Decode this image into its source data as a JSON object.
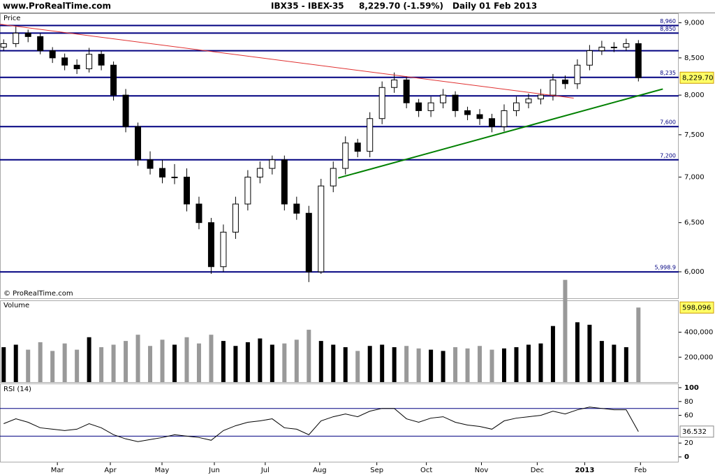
{
  "header": {
    "site": "www.ProRealTime.com",
    "instrument": "IBX35 - IBEX-35",
    "quote": "8,229.70 (-1.59%)",
    "period": "Daily  01 Feb 2013"
  },
  "chart_data": {
    "type": "candlestick",
    "title": "Price",
    "copyright": "© ProRealTime.com",
    "log_scale": true,
    "xlim": [
      -0.3,
      55.3
    ],
    "xticks": [
      {
        "value": 4.4,
        "label": "Mar"
      },
      {
        "value": 8.74,
        "label": "Apr"
      },
      {
        "value": 12.97,
        "label": "May"
      },
      {
        "value": 17.26,
        "label": "Jun"
      },
      {
        "value": 21.43,
        "label": "Jul"
      },
      {
        "value": 25.89,
        "label": "Aug"
      },
      {
        "value": 30.57,
        "label": "Sep"
      },
      {
        "value": 34.63,
        "label": "Oct"
      },
      {
        "value": 39.14,
        "label": "Nov"
      },
      {
        "value": 43.71,
        "label": "Dec"
      },
      {
        "value": 47.6,
        "label": "2013"
      },
      {
        "value": 52.17,
        "label": "Feb"
      }
    ],
    "x": [
      0,
      1,
      2,
      3,
      4,
      5,
      6,
      7,
      8,
      9,
      10,
      11,
      12,
      13,
      14,
      15,
      16,
      17,
      18,
      19,
      20,
      21,
      22,
      23,
      24,
      25,
      26,
      27,
      28,
      29,
      30,
      31,
      32,
      33,
      34,
      35,
      36,
      37,
      38,
      39,
      40,
      41,
      42,
      43,
      44,
      45,
      46,
      47,
      48,
      49,
      50,
      51,
      52
    ],
    "open": [
      8650,
      8700,
      8850,
      8800,
      8600,
      8500,
      8400,
      8350,
      8550,
      8400,
      8000,
      7600,
      7200,
      7100,
      7000,
      7000,
      6700,
      6500,
      6050,
      6400,
      6700,
      7000,
      7100,
      7200,
      6700,
      6600,
      6000,
      6900,
      7100,
      7400,
      7300,
      7700,
      8100,
      8200,
      7900,
      7800,
      7900,
      8000,
      7800,
      7750,
      7700,
      7600,
      7800,
      7900,
      7950,
      8000,
      8200,
      8150,
      8400,
      8600,
      8650,
      8650,
      8700
    ],
    "high": [
      8760,
      8960,
      8900,
      8850,
      8650,
      8560,
      8480,
      8640,
      8600,
      8450,
      8080,
      7650,
      7300,
      7200,
      7150,
      7100,
      6780,
      6550,
      6480,
      6780,
      7080,
      7180,
      7250,
      7250,
      6780,
      6680,
      6980,
      7180,
      7480,
      7450,
      7780,
      8180,
      8300,
      8250,
      7950,
      7980,
      8080,
      8050,
      7850,
      7820,
      7760,
      7880,
      7980,
      8020,
      8080,
      8280,
      8260,
      8480,
      8680,
      8740,
      8720,
      8770,
      8750
    ],
    "low": [
      8600,
      8650,
      8720,
      8550,
      8430,
      8330,
      8280,
      8300,
      8330,
      7930,
      7530,
      7130,
      7030,
      6930,
      6920,
      6620,
      6430,
      5980,
      6000,
      6330,
      6630,
      6930,
      7030,
      6630,
      6530,
      5900,
      5980,
      6830,
      7030,
      7230,
      7230,
      7630,
      8030,
      7830,
      7720,
      7720,
      7830,
      7720,
      7680,
      7620,
      7530,
      7540,
      7730,
      7830,
      7880,
      7930,
      8080,
      8080,
      8330,
      8540,
      8580,
      8600,
      8180
    ],
    "close": [
      8700,
      8850,
      8800,
      8600,
      8500,
      8400,
      8350,
      8550,
      8400,
      8000,
      7600,
      7200,
      7100,
      7000,
      7000,
      6700,
      6500,
      6050,
      6400,
      6700,
      7000,
      7100,
      7200,
      6700,
      6600,
      6000,
      6900,
      7100,
      7400,
      7300,
      7700,
      8100,
      8200,
      7900,
      7800,
      7900,
      8000,
      7800,
      7750,
      7700,
      7600,
      7800,
      7900,
      7950,
      8000,
      8200,
      8150,
      8400,
      8600,
      8650,
      8650,
      8700,
      8230
    ],
    "ylim": [
      5740,
      9130
    ],
    "yticks": [
      {
        "value": 9000,
        "label": "9,000"
      },
      {
        "value": 8500,
        "label": "8,500"
      },
      {
        "value": 8000,
        "label": "8,000"
      },
      {
        "value": 7500,
        "label": "7,500"
      },
      {
        "value": 7000,
        "label": "7,000"
      },
      {
        "value": 6500,
        "label": "6,500"
      },
      {
        "value": 6000,
        "label": "6,000"
      }
    ],
    "last": {
      "value": 8229.7,
      "label": "8,229.70"
    },
    "levels": [
      {
        "value": 8960,
        "label": "8,960"
      },
      {
        "value": 8850,
        "label": "8,850"
      },
      {
        "value": 8235,
        "label": "8,235"
      },
      {
        "value": 7600,
        "label": "7,600"
      },
      {
        "value": 7200,
        "label": "7,200"
      },
      {
        "value": 5998.9,
        "label": "5,998.9"
      }
    ],
    "unlabeled_levels": [
      8600,
      7990
    ],
    "level_color": "#000080",
    "trendlines": [
      {
        "color": "#e03030",
        "x": [
          -0.3,
          46.7
        ],
        "y": [
          8980,
          7960
        ]
      },
      {
        "color": "#008000",
        "x": [
          27.4,
          54.0
        ],
        "y": [
          6990,
          8080
        ]
      }
    ],
    "volume": {
      "title": "Volume",
      "up_color": "#000000",
      "down_color": "#999999",
      "ylim": [
        0,
        650000
      ],
      "yticks": [
        {
          "value": 200000,
          "label": "200,000"
        },
        {
          "value": 400000,
          "label": "400,000"
        }
      ],
      "values": [
        280000,
        300000,
        260000,
        320000,
        250000,
        310000,
        260000,
        360000,
        280000,
        300000,
        330000,
        380000,
        290000,
        340000,
        300000,
        360000,
        310000,
        380000,
        330000,
        290000,
        320000,
        350000,
        300000,
        310000,
        340000,
        420000,
        330000,
        300000,
        280000,
        250000,
        290000,
        300000,
        280000,
        290000,
        270000,
        260000,
        250000,
        280000,
        270000,
        290000,
        260000,
        270000,
        280000,
        300000,
        310000,
        450000,
        820000,
        480000,
        460000,
        330000,
        300000,
        280000,
        598096
      ],
      "last": {
        "value": 598096,
        "label": "598,096"
      }
    },
    "rsi": {
      "title": "RSI (14)",
      "color": "#000000",
      "ylim": [
        -7,
        105
      ],
      "yticks": [
        0,
        20,
        60,
        80,
        100
      ],
      "levels": [
        30,
        70
      ],
      "values": [
        48,
        55,
        50,
        42,
        40,
        38,
        40,
        48,
        42,
        32,
        26,
        22,
        25,
        28,
        32,
        30,
        28,
        24,
        38,
        45,
        50,
        52,
        55,
        42,
        40,
        32,
        52,
        58,
        62,
        58,
        66,
        70,
        70,
        55,
        50,
        56,
        58,
        50,
        46,
        44,
        40,
        52,
        56,
        58,
        60,
        66,
        62,
        68,
        72,
        70,
        68,
        68,
        36.532
      ],
      "last": 36.532
    }
  }
}
